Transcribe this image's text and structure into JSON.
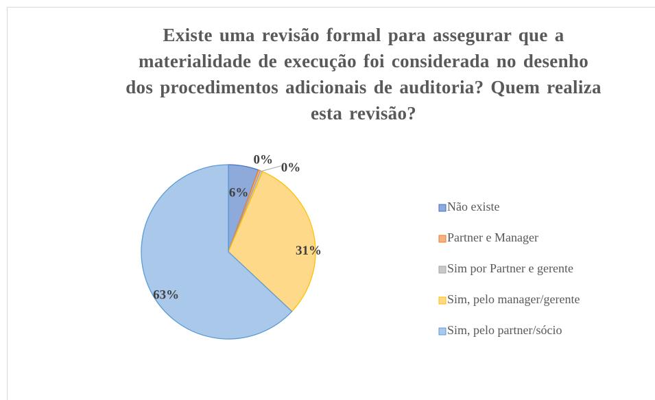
{
  "chart_data": {
    "type": "pie",
    "title": "Existe uma revisão formal para assegurar que a materialidade de execução foi considerada no desenho dos procedimentos adicionais de auditoria? Quem realiza esta revisão?",
    "categories": [
      "Não existe",
      "Partner e Manager",
      "Sim por Partner e gerente",
      "Sim, pelo manager/gerente",
      "Sim, pelo partner/sócio"
    ],
    "values": [
      5.6,
      0.4,
      0.4,
      30.6,
      63
    ],
    "value_labels": [
      "6%",
      "0%",
      "0%",
      "31%",
      "63%"
    ],
    "colors": [
      "#8eaadb",
      "#f4b183",
      "#c9c9c9",
      "#ffd98a",
      "#a9c8ea"
    ],
    "legend": "right"
  }
}
